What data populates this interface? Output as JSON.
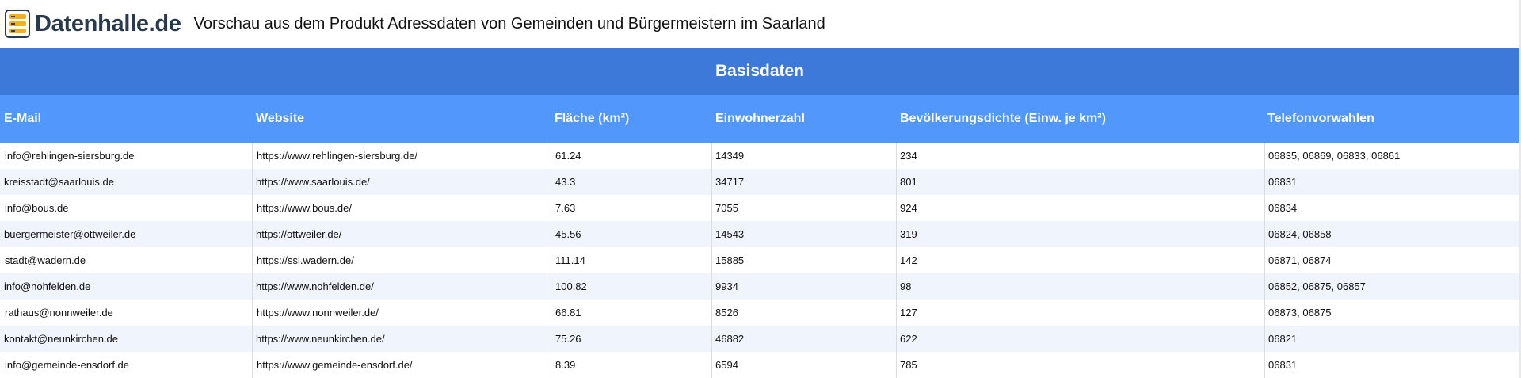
{
  "brand": {
    "name": "Datenhalle.de"
  },
  "page_title": "Vorschau aus dem Produkt Adressdaten von Gemeinden und Bürgermeistern im Saarland",
  "group_header": "Basisdaten",
  "columns": [
    "E-Mail",
    "Website",
    "Fläche (km²)",
    "Einwohnerzahl",
    "Bevölkerungsdichte (Einw. je km²)",
    "Telefonvorwahlen"
  ],
  "rows": [
    [
      "info@rehlingen-siersburg.de",
      "https://www.rehlingen-siersburg.de/",
      "61.24",
      "14349",
      "234",
      "06835, 06869, 06833, 06861"
    ],
    [
      "kreisstadt@saarlouis.de",
      "https://www.saarlouis.de/",
      "43.3",
      "34717",
      "801",
      "06831"
    ],
    [
      "info@bous.de",
      "https://www.bous.de/",
      "7.63",
      "7055",
      "924",
      "06834"
    ],
    [
      "buergermeister@ottweiler.de",
      "https://ottweiler.de/",
      "45.56",
      "14543",
      "319",
      "06824, 06858"
    ],
    [
      "stadt@wadern.de",
      "https://ssl.wadern.de/",
      "111.14",
      "15885",
      "142",
      "06871, 06874"
    ],
    [
      "info@nohfelden.de",
      "https://www.nohfelden.de/",
      "100.82",
      "9934",
      "98",
      "06852, 06875, 06857"
    ],
    [
      "rathaus@nonnweiler.de",
      "https://www.nonnweiler.de/",
      "66.81",
      "8526",
      "127",
      "06873, 06875"
    ],
    [
      "kontakt@neunkirchen.de",
      "https://www.neunkirchen.de/",
      "75.26",
      "46882",
      "622",
      "06821"
    ],
    [
      "info@gemeinde-ensdorf.de",
      "https://www.gemeinde-ensdorf.de/",
      "8.39",
      "6594",
      "785",
      "06831"
    ]
  ]
}
